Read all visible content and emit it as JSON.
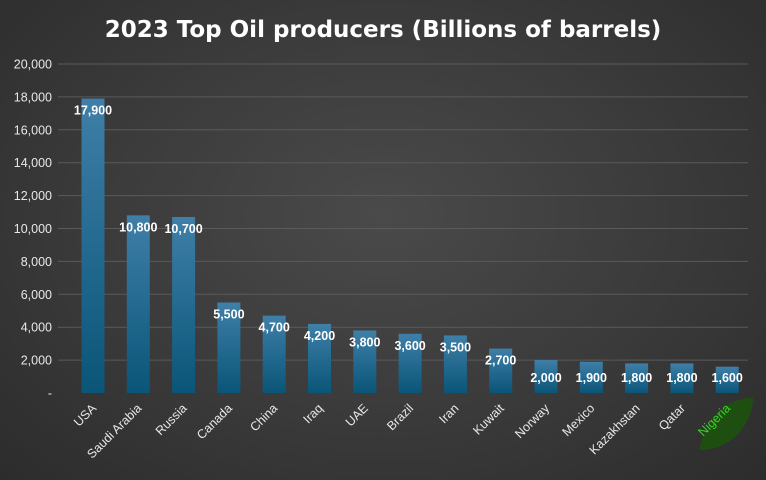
{
  "chart_data": {
    "type": "bar",
    "title": "2023 Top Oil producers (Billions of barrels)",
    "categories": [
      "USA",
      "Saudi Arabia",
      "Russia",
      "Canada",
      "China",
      "Iraq",
      "UAE",
      "Brazil",
      "Iran",
      "Kuwait",
      "Norway",
      "Mexico",
      "Kazakhstan",
      "Qatar",
      "Nigeria"
    ],
    "values": [
      17900,
      10800,
      10700,
      5500,
      4700,
      4200,
      3800,
      3600,
      3500,
      2700,
      2000,
      1900,
      1800,
      1800,
      1600
    ],
    "data_labels": [
      "17,900",
      "10,800",
      "10,700",
      "5,500",
      "4,700",
      "4,200",
      "3,800",
      "3,600",
      "3,500",
      "2,700",
      "2,000",
      "1,900",
      "1,800",
      "1,800",
      "1,600"
    ],
    "ylim": [
      0,
      20000
    ],
    "yticks": [
      0,
      2000,
      4000,
      6000,
      8000,
      10000,
      12000,
      14000,
      16000,
      18000,
      20000
    ],
    "ytick_labels": [
      "-",
      "2,000",
      "4,000",
      "6,000",
      "8,000",
      "10,000",
      "12,000",
      "14,000",
      "16,000",
      "18,000",
      "20,000"
    ],
    "xlabel": "",
    "ylabel": "",
    "grid": true,
    "highlight": {
      "category": "Nigeria",
      "label_color": "#39d32a",
      "leaf_color": "#1f4f10"
    },
    "colors": {
      "bar_top": "#3f7fa8",
      "bar_bottom": "#0a5578",
      "text": "#e8e8e8",
      "grid": "#5a5a5a"
    }
  }
}
